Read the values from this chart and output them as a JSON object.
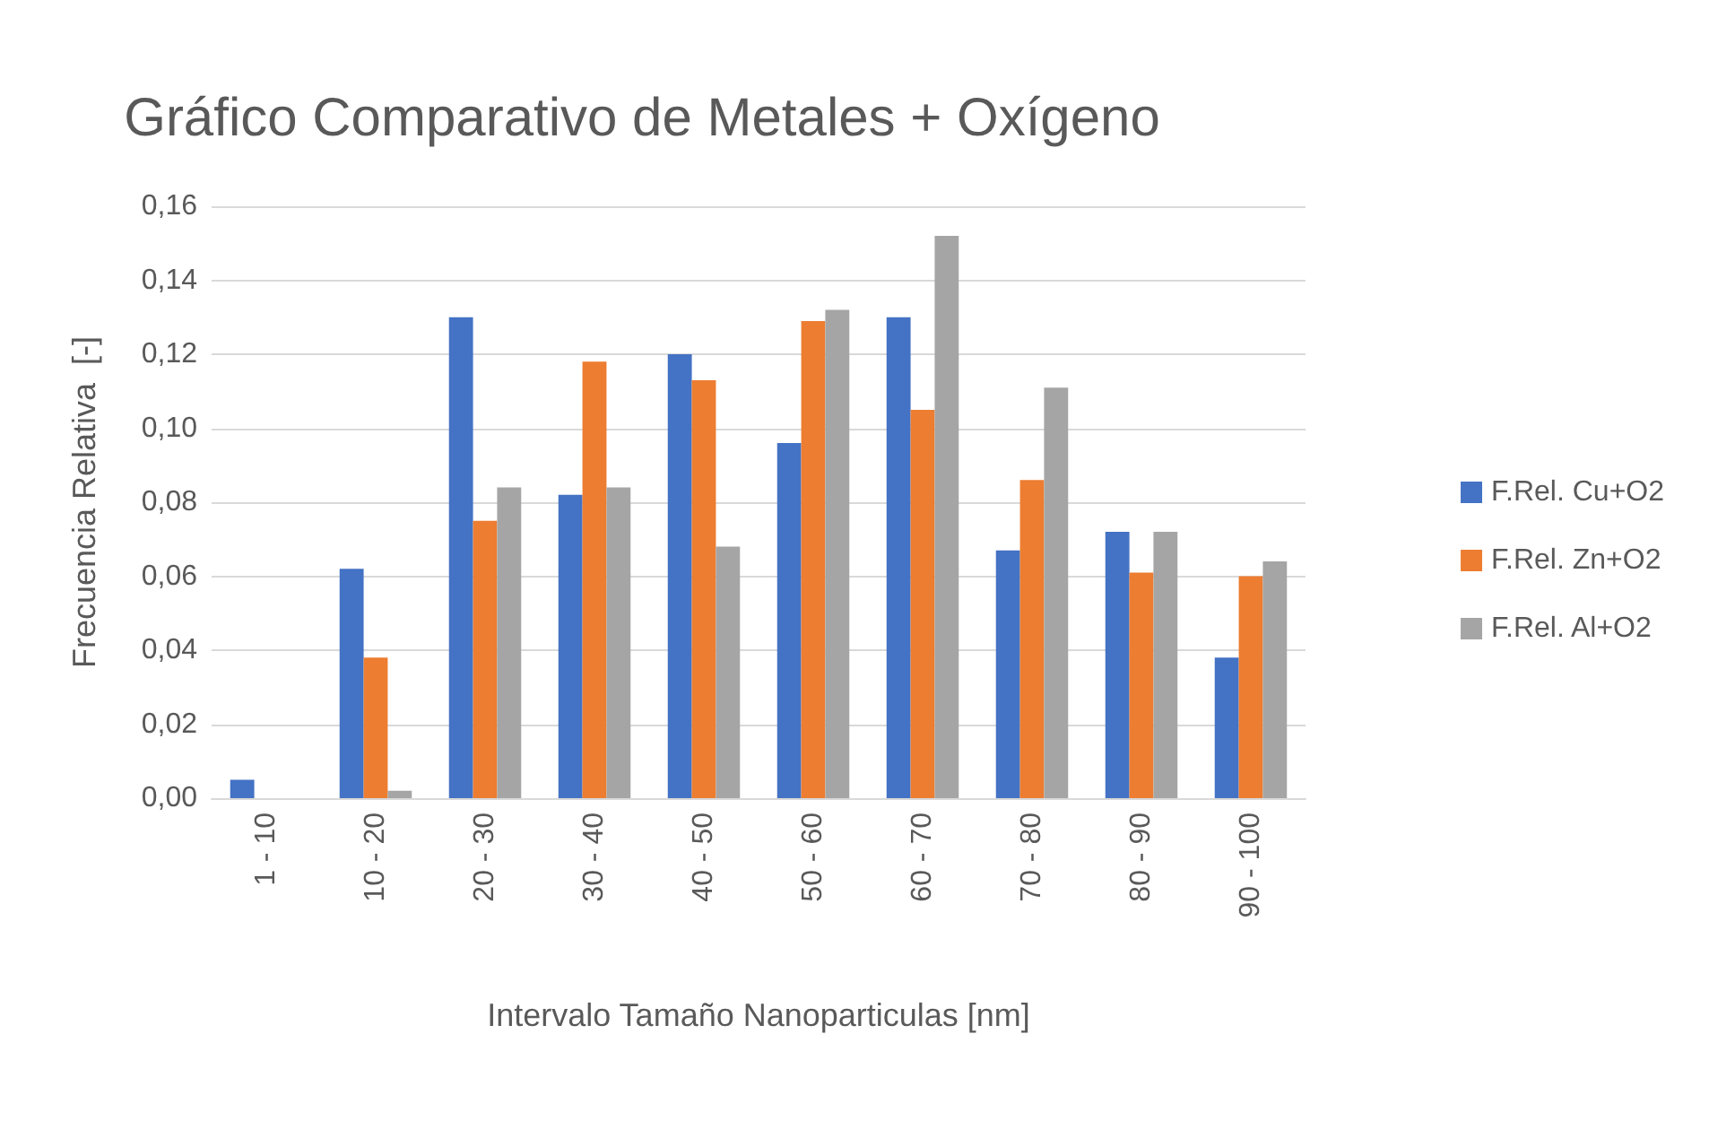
{
  "chart_data": {
    "type": "bar",
    "title": "Gráfico Comparativo de Metales + Oxígeno",
    "xlabel": "Intervalo Tamaño Nanoparticulas [nm]",
    "ylabel": "Frecuencia Relativa  [-]",
    "categories": [
      "1 - 10",
      "10 - 20",
      "20 - 30",
      "30 - 40",
      "40 - 50",
      "50 - 60",
      "60 - 70",
      "70 - 80",
      "80 - 90",
      "90 - 100"
    ],
    "series": [
      {
        "name": "F.Rel. Cu+O2",
        "color": "#4472c4",
        "values": [
          0.005,
          0.062,
          0.13,
          0.082,
          0.12,
          0.096,
          0.13,
          0.067,
          0.072,
          0.038
        ]
      },
      {
        "name": "F.Rel. Zn+O2",
        "color": "#ed7d31",
        "values": [
          0,
          0.038,
          0.075,
          0.118,
          0.113,
          0.129,
          0.105,
          0.086,
          0.061,
          0.06
        ]
      },
      {
        "name": "F.Rel. Al+O2",
        "color": "#a5a5a5",
        "values": [
          0,
          0.002,
          0.084,
          0.084,
          0.068,
          0.132,
          0.152,
          0.111,
          0.072,
          0.064
        ]
      }
    ],
    "ylim": [
      0,
      0.16
    ],
    "yticks": [
      {
        "value": 0,
        "label": "0,00"
      },
      {
        "value": 0.02,
        "label": "0,02"
      },
      {
        "value": 0.04,
        "label": "0,04"
      },
      {
        "value": 0.06,
        "label": "0,06"
      },
      {
        "value": 0.08,
        "label": "0,08"
      },
      {
        "value": 0.1,
        "label": "0,10"
      },
      {
        "value": 0.12,
        "label": "0,12"
      },
      {
        "value": 0.14,
        "label": "0,14"
      },
      {
        "value": 0.16,
        "label": "0,16"
      }
    ],
    "grid": "y",
    "legend": "right"
  }
}
